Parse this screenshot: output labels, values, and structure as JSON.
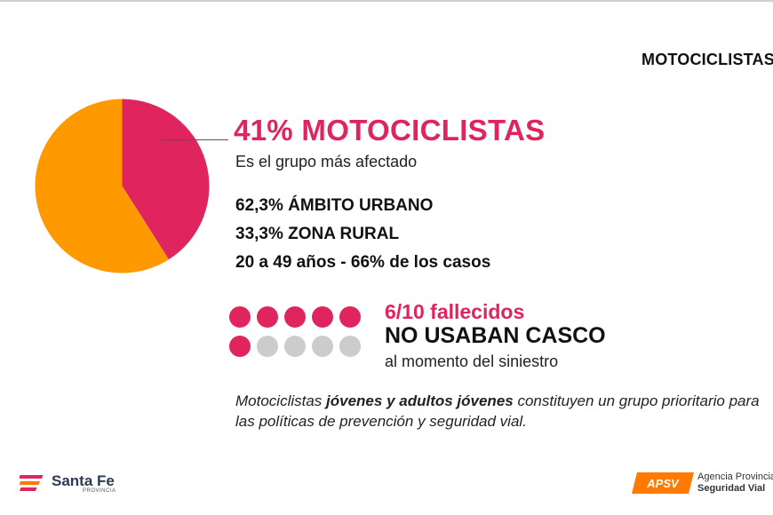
{
  "header": {
    "corner_title": "MOTOCICLISTAS"
  },
  "chart_data": {
    "type": "pie",
    "slices": [
      {
        "label": "MOTOCICLISTAS",
        "value": 41,
        "color": "#e0245e"
      },
      {
        "label": "",
        "value": 59,
        "color": "#ff9900"
      }
    ]
  },
  "headline": "41% MOTOCICLISTAS",
  "subline": "Es el grupo más afectado",
  "stats": [
    "62,3% ÁMBITO URBANO",
    "33,3% ZONA RURAL",
    "20 a 49 años - 66% de los casos"
  ],
  "helmet": {
    "filled": 6,
    "total": 10,
    "filled_color": "#e0245e",
    "empty_color": "#cccccc",
    "fallecidos": "6/10 fallecidos",
    "no_casco": "NO USABAN CASCO",
    "momento": "al momento del siniestro"
  },
  "note": {
    "part1": "Motociclistas ",
    "bold": "jóvenes y adultos jóvenes",
    "part2": " constituyen un grupo prioritario para las políticas de prevención y seguridad vial."
  },
  "footer": {
    "santafe_name": "Santa Fe",
    "santafe_sub": "PROVINCIA",
    "apsv_badge": "APSV",
    "apsv_line1": "Agencia Provincial",
    "apsv_line2": "Seguridad Vial"
  }
}
